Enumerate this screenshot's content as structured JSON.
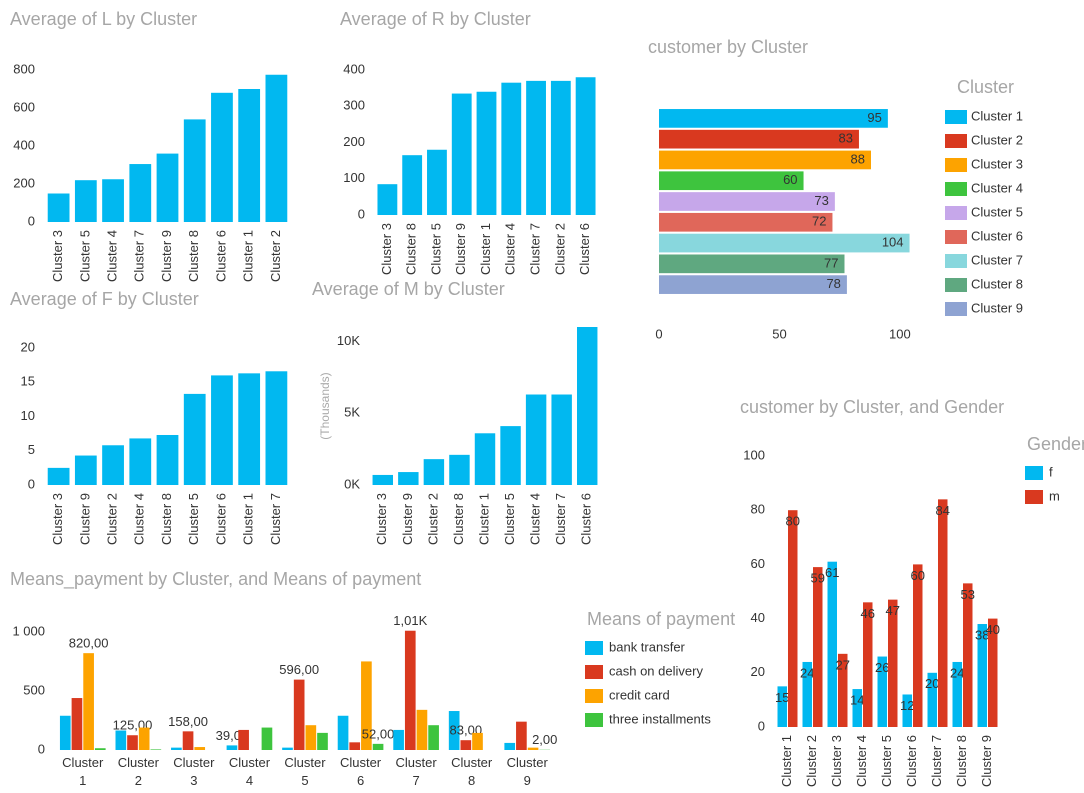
{
  "chart_data": [
    {
      "type": "bar",
      "title": "Average of L by Cluster",
      "categories": [
        "Cluster 3",
        "Cluster 5",
        "Cluster 4",
        "Cluster 7",
        "Cluster 9",
        "Cluster 8",
        "Cluster 6",
        "Cluster 1",
        "Cluster 2"
      ],
      "values": [
        150,
        220,
        225,
        305,
        360,
        540,
        680,
        700,
        775
      ],
      "color": "#01b8f0",
      "ylim": [
        0,
        800
      ],
      "yticks": [
        0,
        200,
        400,
        600,
        800
      ]
    },
    {
      "type": "bar",
      "title": "Average of R by Cluster",
      "categories": [
        "Cluster 3",
        "Cluster 8",
        "Cluster 5",
        "Cluster 9",
        "Cluster 1",
        "Cluster 4",
        "Cluster 7",
        "Cluster 2",
        "Cluster 6"
      ],
      "values": [
        85,
        165,
        180,
        335,
        340,
        365,
        370,
        370,
        380
      ],
      "color": "#01b8f0",
      "ylim": [
        0,
        400
      ],
      "yticks": [
        0,
        100,
        200,
        300,
        400
      ]
    },
    {
      "type": "bar",
      "title": "Average of F by Cluster",
      "categories": [
        "Cluster 3",
        "Cluster 9",
        "Cluster 2",
        "Cluster 4",
        "Cluster 8",
        "Cluster 5",
        "Cluster 6",
        "Cluster 1",
        "Cluster 7"
      ],
      "values": [
        2.5,
        4.3,
        5.8,
        6.8,
        7.3,
        13.3,
        16,
        16.3,
        16.6
      ],
      "color": "#01b8f0",
      "ylim": [
        0,
        20
      ],
      "yticks": [
        0,
        5,
        10,
        15,
        20
      ]
    },
    {
      "type": "bar",
      "title": "Average of M by Cluster",
      "y_label": "(Thousands)",
      "categories": [
        "Cluster 3",
        "Cluster 9",
        "Cluster 2",
        "Cluster 8",
        "Cluster 1",
        "Cluster 5",
        "Cluster 4",
        "Cluster 7",
        "Cluster 6"
      ],
      "values": [
        700,
        900,
        1800,
        2100,
        3600,
        4100,
        6300,
        6300,
        11000
      ],
      "color": "#01b8f0",
      "ylim": [
        0,
        11000
      ],
      "yticks": [
        {
          "value": 0,
          "label": "0K"
        },
        {
          "value": 5000,
          "label": "5K"
        },
        {
          "value": 10000,
          "label": "10K"
        }
      ]
    },
    {
      "type": "hbar",
      "title": "customer by Cluster",
      "legend_title": "Cluster",
      "data_labels": true,
      "categories": [
        "Cluster 1",
        "Cluster 2",
        "Cluster 3",
        "Cluster 4",
        "Cluster 5",
        "Cluster 6",
        "Cluster 7",
        "Cluster 8",
        "Cluster 9"
      ],
      "values": [
        95,
        83,
        88,
        60,
        73,
        72,
        104,
        77,
        78
      ],
      "colors": [
        "#01b8f0",
        "#d9391f",
        "#fda300",
        "#3ec43e",
        "#c6a7ea",
        "#e0675a",
        "#88d7dd",
        "#5fa880",
        "#8ea3d2"
      ],
      "xlim": [
        0,
        110
      ],
      "xticks": [
        0,
        50,
        100
      ]
    },
    {
      "type": "bar",
      "title": "customer by Cluster, and Gender",
      "legend_title": "Gender",
      "data_labels": true,
      "categories": [
        "Cluster 1",
        "Cluster 2",
        "Cluster 3",
        "Cluster 4",
        "Cluster 5",
        "Cluster 6",
        "Cluster 7",
        "Cluster 8",
        "Cluster 9"
      ],
      "series": [
        {
          "name": "f",
          "color": "#01b8f0",
          "values": [
            15,
            24,
            61,
            14,
            26,
            12,
            20,
            24,
            38
          ]
        },
        {
          "name": "m",
          "color": "#d9391f",
          "values": [
            80,
            59,
            27,
            46,
            47,
            60,
            84,
            53,
            40
          ]
        }
      ],
      "ylim": [
        0,
        100
      ],
      "yticks": [
        0,
        20,
        40,
        60,
        80,
        100
      ]
    },
    {
      "type": "bar",
      "title": "Means_payment by Cluster, and Means of payment",
      "legend_title": "Means of payment",
      "categories": [
        "Cluster 1",
        "Cluster 2",
        "Cluster 3",
        "Cluster 4",
        "Cluster 5",
        "Cluster 6",
        "Cluster 7",
        "Cluster 8",
        "Cluster 9"
      ],
      "series": [
        {
          "name": "bank transfer",
          "color": "#01b8f0",
          "values": [
            290,
            165,
            20,
            39,
            20,
            290,
            170,
            330,
            60
          ],
          "value_labels": [
            null,
            null,
            null,
            "39,00",
            null,
            null,
            null,
            null,
            null
          ]
        },
        {
          "name": "cash on delivery",
          "color": "#d9391f",
          "values": [
            440,
            125,
            158,
            170,
            596,
            65,
            1010,
            83,
            240
          ],
          "value_labels": [
            null,
            "125,00",
            "158,00",
            null,
            "596,00",
            null,
            "1,01K",
            "83,00",
            null
          ]
        },
        {
          "name": "credit card",
          "color": "#fda300",
          "values": [
            820,
            190,
            25,
            0,
            210,
            750,
            340,
            145,
            20
          ],
          "value_labels": [
            "820,00",
            null,
            null,
            null,
            null,
            null,
            null,
            null,
            null
          ]
        },
        {
          "name": "three installments",
          "color": "#3ec43e",
          "values": [
            15,
            5,
            0,
            190,
            145,
            52,
            210,
            0,
            2
          ],
          "value_labels": [
            null,
            null,
            null,
            null,
            null,
            "52,00",
            null,
            null,
            "2,00"
          ]
        }
      ],
      "ylim": [
        0,
        1050
      ],
      "yticks": [
        0,
        500,
        {
          "value": 1000,
          "label": "1 000"
        }
      ]
    }
  ]
}
